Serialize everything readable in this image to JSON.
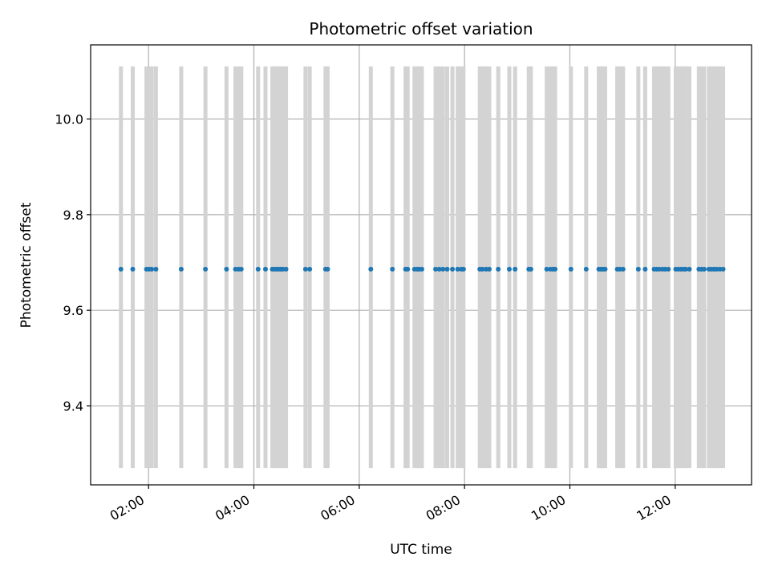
{
  "chart_data": {
    "type": "scatter",
    "title": "Photometric offset variation",
    "xlabel": "UTC time",
    "ylabel": "Photometric offset",
    "grid": true,
    "xlim_hours": [
      0.9,
      13.45
    ],
    "ylim": [
      9.235,
      10.155
    ],
    "x_ticks": [
      {
        "hours": 2,
        "label": "02:00"
      },
      {
        "hours": 4,
        "label": "04:00"
      },
      {
        "hours": 6,
        "label": "06:00"
      },
      {
        "hours": 8,
        "label": "08:00"
      },
      {
        "hours": 10,
        "label": "10:00"
      },
      {
        "hours": 12,
        "label": "12:00"
      }
    ],
    "y_ticks": [
      {
        "value": 9.4,
        "label": "9.4"
      },
      {
        "value": 9.6,
        "label": "9.6"
      },
      {
        "value": 9.8,
        "label": "9.8"
      },
      {
        "value": 10.0,
        "label": "10.0"
      }
    ],
    "errorbar_range": [
      9.27,
      10.11
    ],
    "offset_value": 9.686,
    "colors": {
      "points": "#1f77b4",
      "errorbars": "#d3d3d3",
      "grid": "#b0b0b0"
    },
    "times_hours": [
      1.475,
      1.7,
      1.96,
      2.01,
      2.06,
      2.14,
      2.62,
      3.08,
      3.48,
      3.65,
      3.71,
      3.76,
      4.08,
      4.22,
      4.35,
      4.39,
      4.43,
      4.47,
      4.51,
      4.55,
      4.61,
      4.98,
      5.06,
      5.36,
      5.4,
      6.22,
      6.63,
      6.88,
      6.92,
      7.05,
      7.1,
      7.14,
      7.19,
      7.45,
      7.52,
      7.59,
      7.67,
      7.77,
      7.87,
      7.94,
      7.98,
      8.29,
      8.34,
      8.41,
      8.47,
      8.64,
      8.85,
      8.96,
      9.22,
      9.26,
      9.56,
      9.63,
      9.68,
      9.72,
      10.02,
      10.31,
      10.55,
      10.59,
      10.63,
      10.67,
      10.9,
      10.95,
      11.01,
      11.3,
      11.43,
      11.6,
      11.65,
      11.7,
      11.76,
      11.81,
      11.87,
      12.01,
      12.06,
      12.11,
      12.16,
      12.2,
      12.27,
      12.45,
      12.5,
      12.55,
      12.64,
      12.69,
      12.74,
      12.79,
      12.85,
      12.91
    ]
  }
}
